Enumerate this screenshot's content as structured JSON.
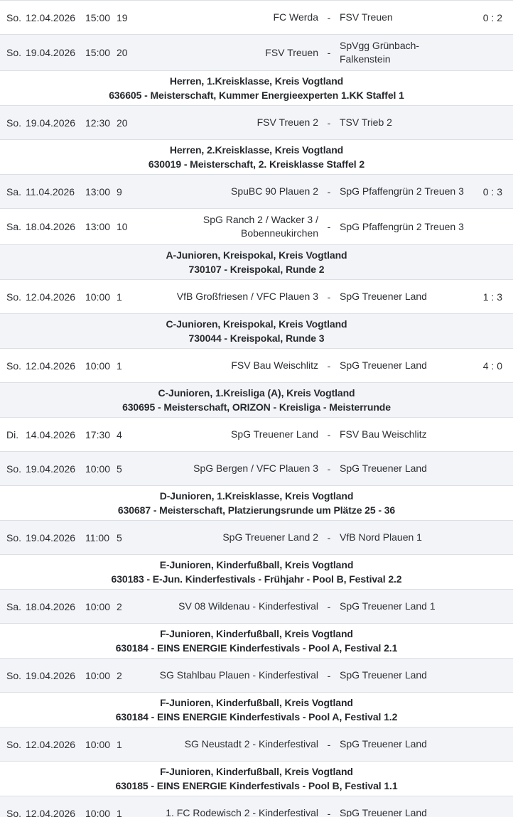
{
  "table": {
    "separator": "-",
    "sections": [
      {
        "header": null,
        "matches": [
          {
            "day": "So.",
            "date": "12.04.2026",
            "time": "15:00",
            "nr": "19",
            "home": "FC Werda",
            "away": "FSV Treuen",
            "score": "0 : 2"
          },
          {
            "day": "So.",
            "date": "19.04.2026",
            "time": "15:00",
            "nr": "20",
            "home": "FSV Treuen",
            "away": "SpVgg Grünbach-Falkenstein",
            "score": ""
          }
        ]
      },
      {
        "header": {
          "title": "Herren, 1.Kreisklasse, Kreis Vogtland",
          "subtitle": "636605 - Meisterschaft, Kummer Energieexperten 1.KK Staffel 1"
        },
        "matches": [
          {
            "day": "So.",
            "date": "19.04.2026",
            "time": "12:30",
            "nr": "20",
            "home": "FSV Treuen 2",
            "away": "TSV Trieb 2",
            "score": ""
          }
        ]
      },
      {
        "header": {
          "title": "Herren, 2.Kreisklasse, Kreis Vogtland",
          "subtitle": "630019 - Meisterschaft, 2. Kreisklasse Staffel 2"
        },
        "matches": [
          {
            "day": "Sa.",
            "date": "11.04.2026",
            "time": "13:00",
            "nr": "9",
            "home": "SpuBC 90 Plauen 2",
            "away": "SpG Pfaffengrün 2 Treuen 3",
            "score": "0 : 3"
          },
          {
            "day": "Sa.",
            "date": "18.04.2026",
            "time": "13:00",
            "nr": "10",
            "home": "SpG Ranch 2 / Wacker 3 / Bobenneukirchen",
            "away": "SpG Pfaffengrün 2 Treuen 3",
            "score": ""
          }
        ]
      },
      {
        "header": {
          "title": "A-Junioren, Kreispokal, Kreis Vogtland",
          "subtitle": "730107 - Kreispokal, Runde 2"
        },
        "matches": [
          {
            "day": "So.",
            "date": "12.04.2026",
            "time": "10:00",
            "nr": "1",
            "home": "VfB Großfriesen / VFC Plauen 3",
            "away": "SpG Treuener Land",
            "score": "1 : 3"
          }
        ]
      },
      {
        "header": {
          "title": "C-Junioren, Kreispokal, Kreis Vogtland",
          "subtitle": "730044 - Kreispokal, Runde 3"
        },
        "matches": [
          {
            "day": "So.",
            "date": "12.04.2026",
            "time": "10:00",
            "nr": "1",
            "home": "FSV Bau Weischlitz",
            "away": "SpG Treuener Land",
            "score": "4 : 0"
          }
        ]
      },
      {
        "header": {
          "title": "C-Junioren, 1.Kreisliga (A), Kreis Vogtland",
          "subtitle": "630695 - Meisterschaft, ORIZON - Kreisliga - Meisterrunde"
        },
        "matches": [
          {
            "day": "Di.",
            "date": "14.04.2026",
            "time": "17:30",
            "nr": "4",
            "home": "SpG Treuener Land",
            "away": "FSV Bau Weischlitz",
            "score": ""
          },
          {
            "day": "So.",
            "date": "19.04.2026",
            "time": "10:00",
            "nr": "5",
            "home": "SpG Bergen / VFC Plauen 3",
            "away": "SpG Treuener Land",
            "score": ""
          }
        ]
      },
      {
        "header": {
          "title": "D-Junioren, 1.Kreisklasse, Kreis Vogtland",
          "subtitle": "630687 - Meisterschaft, Platzierungsrunde um Plätze 25 - 36"
        },
        "matches": [
          {
            "day": "So.",
            "date": "19.04.2026",
            "time": "11:00",
            "nr": "5",
            "home": "SpG Treuener Land 2",
            "away": "VfB Nord Plauen 1",
            "score": ""
          }
        ]
      },
      {
        "header": {
          "title": "E-Junioren, Kinderfußball, Kreis Vogtland",
          "subtitle": "630183 - E-Jun. Kinderfestivals - Frühjahr - Pool B, Festival 2.2"
        },
        "matches": [
          {
            "day": "Sa.",
            "date": "18.04.2026",
            "time": "10:00",
            "nr": "2",
            "home": "SV 08 Wildenau - Kinderfestival",
            "away": "SpG Treuener Land 1",
            "score": ""
          }
        ]
      },
      {
        "header": {
          "title": "F-Junioren, Kinderfußball, Kreis Vogtland",
          "subtitle": "630184 - EINS ENERGIE Kinderfestivals - Pool A, Festival 2.1"
        },
        "matches": [
          {
            "day": "So.",
            "date": "19.04.2026",
            "time": "10:00",
            "nr": "2",
            "home": "SG Stahlbau Plauen - Kinderfestival",
            "away": "SpG Treuener Land",
            "score": ""
          }
        ]
      },
      {
        "header": {
          "title": "F-Junioren, Kinderfußball, Kreis Vogtland",
          "subtitle": "630184 - EINS ENERGIE Kinderfestivals - Pool A, Festival 1.2"
        },
        "matches": [
          {
            "day": "So.",
            "date": "12.04.2026",
            "time": "10:00",
            "nr": "1",
            "home": "SG Neustadt 2 - Kinderfestival",
            "away": "SpG Treuener Land",
            "score": ""
          }
        ]
      },
      {
        "header": {
          "title": "F-Junioren, Kinderfußball, Kreis Vogtland",
          "subtitle": "630185 - EINS ENERGIE Kinderfestivals - Pool B, Festival 1.1"
        },
        "matches": [
          {
            "day": "So.",
            "date": "12.04.2026",
            "time": "10:00",
            "nr": "1",
            "home": "1. FC Rodewisch 2 - Kinderfestival",
            "away": "SpG Treuener Land",
            "score": ""
          }
        ]
      }
    ]
  },
  "colors": {
    "row_alt_background": "#f2f4f8",
    "separator_line": "#dcdfe5",
    "text": "#2c2f33"
  }
}
